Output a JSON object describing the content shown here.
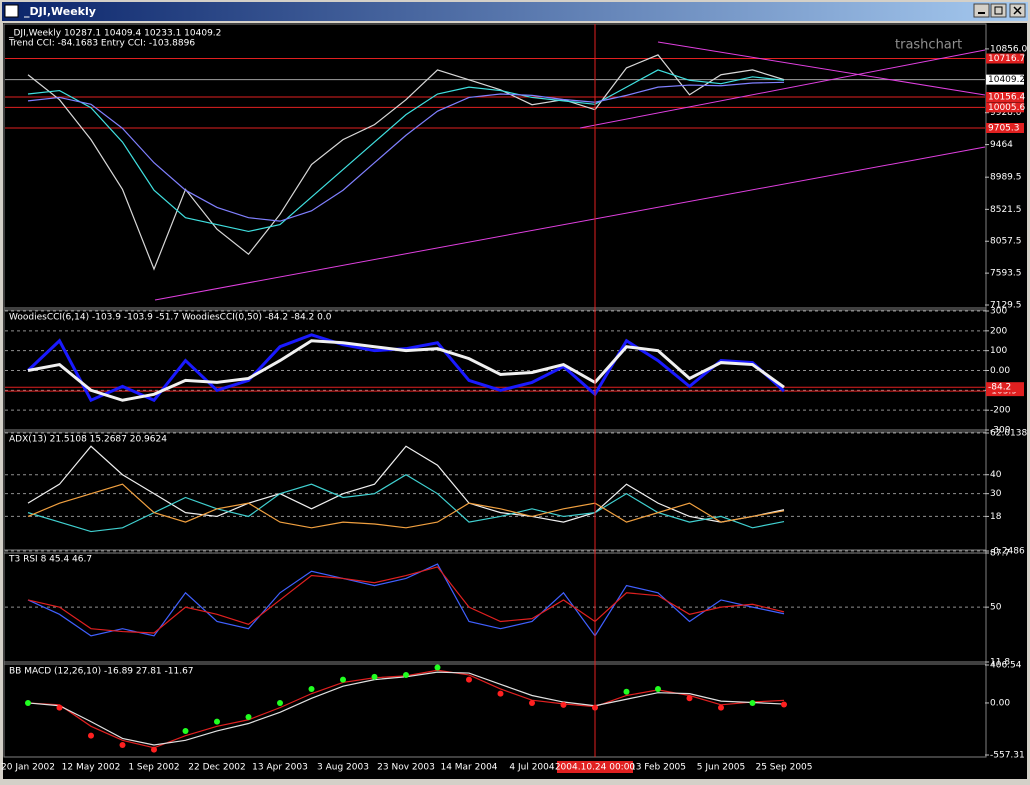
{
  "window": {
    "title": "_DJI,Weekly",
    "watermark": "trashchart",
    "crosshair_label": "2004.10.24 00:00"
  },
  "chart_data": [
    {
      "type": "line",
      "title": "_DJI,Weekly  10287.1 10409.4 10233.1 10409.2",
      "subtitle": "Trend CCI: -84.1683 Entry CCI: -103.8896",
      "ylim": [
        7086,
        11175
      ],
      "yticks": [
        {
          "value": 10856,
          "label": "10856.0"
        },
        {
          "value": 9928,
          "label": "9928.0"
        },
        9464,
        8989.5,
        8521.5,
        8057.5,
        7593.5,
        7129.5
      ],
      "grid": false,
      "last_price": 10409.2,
      "levels": [
        10716.7,
        10156.4,
        10005.6,
        9705.3
      ],
      "series": [
        {
          "color": "#d8d8d8",
          "values": [
            10480,
            10117,
            9536,
            8812,
            7652,
            8812,
            8232,
            7869,
            8449,
            9174,
            9536,
            9754,
            10117,
            10551,
            10406,
            10261,
            10044,
            10117,
            9972,
            10580,
            10769,
            10189,
            10480,
            10551,
            10409.2
          ]
        },
        {
          "color": "#40e0e0",
          "values": [
            10200,
            10250,
            10000,
            9500,
            8800,
            8400,
            8300,
            8200,
            8300,
            8700,
            9100,
            9500,
            9900,
            10200,
            10300,
            10250,
            10150,
            10100,
            10050,
            10300,
            10550,
            10400,
            10350,
            10450,
            10400
          ]
        },
        {
          "color": "#8080ff",
          "values": [
            10100,
            10150,
            10050,
            9700,
            9200,
            8800,
            8550,
            8400,
            8350,
            8500,
            8800,
            9200,
            9600,
            9950,
            10150,
            10200,
            10180,
            10120,
            10080,
            10180,
            10300,
            10330,
            10320,
            10360,
            10370
          ]
        }
      ]
    },
    {
      "type": "line",
      "title": "WoodiesCCI(6,14) -103.9 -103.9 -51.7  WoodiesCCI(0,50) -84.2 -84.2 0.0",
      "ylim": [
        -300,
        300
      ],
      "yticks": [
        300,
        200,
        100,
        {
          "value": 0,
          "label": "0.00"
        },
        -100,
        -200,
        -300
      ],
      "grid": true,
      "levels": [
        -103.9,
        -84.2
      ],
      "series": [
        {
          "color": "#1a1aff",
          "width": 3,
          "values": [
            0,
            150,
            -150,
            -80,
            -150,
            50,
            -100,
            -50,
            120,
            180,
            130,
            100,
            110,
            140,
            -50,
            -100,
            -60,
            20,
            -120,
            150,
            50,
            -80,
            50,
            40,
            -103.9
          ]
        },
        {
          "color": "#f0f0f0",
          "width": 3,
          "values": [
            0,
            30,
            -100,
            -150,
            -120,
            -50,
            -60,
            -40,
            50,
            150,
            140,
            120,
            100,
            110,
            60,
            -20,
            -10,
            30,
            -60,
            120,
            100,
            -40,
            40,
            30,
            -84.2
          ]
        }
      ]
    },
    {
      "type": "line",
      "title": "ADX(13) 21.5108 15.2687 20.9624",
      "ylim": [
        -0.2486,
        62.0138
      ],
      "yticks": [
        62.0138,
        40,
        30,
        18,
        -0.2486
      ],
      "grid": true,
      "series": [
        {
          "color": "#f0f0f0",
          "values": [
            25,
            35,
            55,
            40,
            30,
            20,
            18,
            25,
            30,
            22,
            30,
            35,
            55,
            45,
            25,
            20,
            18,
            15,
            20,
            35,
            25,
            18,
            15,
            18,
            21.5108
          ]
        },
        {
          "color": "#40d0d0",
          "values": [
            20,
            15,
            10,
            12,
            20,
            28,
            22,
            18,
            30,
            35,
            28,
            30,
            40,
            30,
            15,
            18,
            22,
            18,
            20,
            30,
            20,
            15,
            18,
            12,
            15.2687
          ]
        },
        {
          "color": "#f0a040",
          "values": [
            18,
            25,
            30,
            35,
            20,
            15,
            22,
            25,
            15,
            12,
            15,
            14,
            12,
            15,
            25,
            22,
            18,
            22,
            25,
            15,
            20,
            25,
            15,
            18,
            20.9624
          ]
        }
      ]
    },
    {
      "type": "line",
      "title": "T3 RSI 8 45.4 46.7",
      "ylim": [
        11.8,
        87.7
      ],
      "yticks": [
        87.7,
        50,
        11.8
      ],
      "grid": true,
      "series": [
        {
          "color": "#4060ff",
          "values": [
            55,
            45,
            30,
            35,
            30,
            60,
            40,
            35,
            60,
            75,
            70,
            65,
            70,
            80,
            40,
            35,
            40,
            60,
            30,
            65,
            60,
            40,
            55,
            50,
            45.4
          ]
        },
        {
          "color": "#e02020",
          "values": [
            55,
            50,
            35,
            33,
            32,
            50,
            45,
            38,
            55,
            72,
            70,
            67,
            72,
            78,
            50,
            40,
            42,
            55,
            40,
            60,
            58,
            45,
            50,
            52,
            46.7
          ]
        }
      ]
    },
    {
      "type": "line",
      "title": "BB MACD (12,26,10) -16.89 27.81 -11.67",
      "ylim": [
        -557.31,
        406.54
      ],
      "yticks": [
        406.54,
        {
          "value": 0,
          "label": "0.00"
        },
        -557.31
      ],
      "grid": false,
      "categories": [
        "20 Jan 2002",
        null,
        "12 May 2002",
        null,
        "1 Sep 2002",
        null,
        "22 Dec 2002",
        null,
        "13 Apr 2003",
        null,
        "3 Aug 2003",
        null,
        "23 Nov 2003",
        null,
        "14 Mar 2004",
        null,
        "4 Jul 2004",
        null,
        "24 Oct 2004",
        null,
        "13 Feb 2005",
        null,
        "5 Jun 2005",
        null,
        "25 Sep 2005"
      ],
      "series": [
        {
          "color": "#e02020",
          "values": [
            0,
            -20,
            -250,
            -400,
            -480,
            -350,
            -250,
            -180,
            -50,
            100,
            220,
            270,
            290,
            350,
            300,
            150,
            30,
            -10,
            -40,
            80,
            140,
            80,
            -20,
            10,
            27.81
          ]
        },
        {
          "color": "#e0e0e0",
          "values": [
            0,
            -30,
            -200,
            -380,
            -450,
            -400,
            -300,
            -220,
            -100,
            50,
            180,
            250,
            280,
            330,
            320,
            200,
            80,
            10,
            -30,
            40,
            110,
            100,
            20,
            5,
            -11.67
          ]
        },
        {
          "mode": "markers",
          "up_color": "#20ff20",
          "down_color": "#ff2020",
          "values": [
            0,
            -50,
            -350,
            -450,
            -500,
            -300,
            -200,
            -150,
            0,
            150,
            250,
            280,
            300,
            380,
            250,
            100,
            0,
            -20,
            -50,
            120,
            150,
            50,
            -50,
            0,
            -16.89
          ]
        }
      ]
    }
  ]
}
